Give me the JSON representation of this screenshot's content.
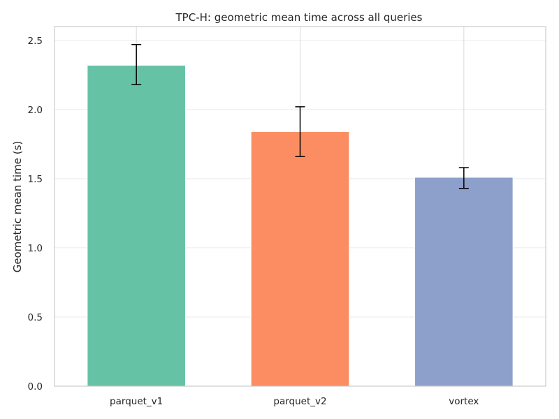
{
  "chart_data": {
    "type": "bar",
    "title": "TPC-H: geometric mean time across all queries",
    "xlabel": "",
    "ylabel": "Geometric mean time (s)",
    "categories": [
      "parquet_v1",
      "parquet_v2",
      "vortex"
    ],
    "values": [
      2.32,
      1.84,
      1.51
    ],
    "error_low": [
      2.18,
      1.66,
      1.43
    ],
    "error_high": [
      2.47,
      2.02,
      1.58
    ],
    "colors": [
      "#66c2a5",
      "#fc8d62",
      "#8da0cb"
    ],
    "ylim": [
      0,
      2.6
    ],
    "yticks": [
      0.0,
      0.5,
      1.0,
      1.5,
      2.0,
      2.5
    ],
    "ytick_labels": [
      "0.0",
      "0.5",
      "1.0",
      "1.5",
      "2.0",
      "2.5"
    ],
    "grid": true,
    "legend": "none"
  }
}
